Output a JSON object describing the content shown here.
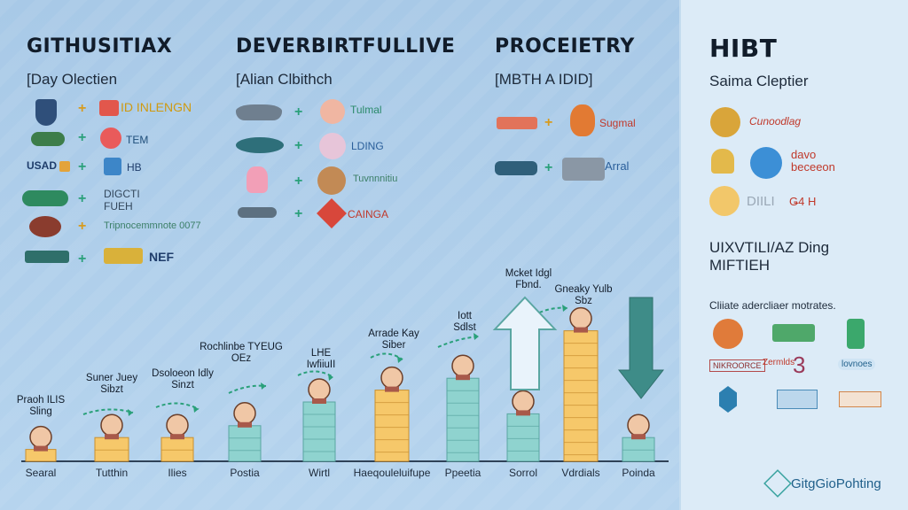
{
  "columns": [
    {
      "title": "GITHUSITIAX",
      "subtitle": "[Day Olectien",
      "rows": [
        "ID INLENGN",
        "TEM",
        "HB",
        "DIGCTI FUEH",
        "Tripnocemmnote 0077",
        "NEF"
      ],
      "left_labels": {
        "usad": "USAD"
      }
    },
    {
      "title": "DEVERBIRTFULLIVE",
      "subtitle": "[Alian Clbithch",
      "rows": [
        "Tulmal",
        "LDING",
        "Tuvnnnitiu",
        "CAINGA"
      ]
    },
    {
      "title": "PROCEIETRY",
      "subtitle": "[MBTH A IDID]",
      "rows": [
        "Sugmal",
        "Arral"
      ]
    }
  ],
  "right_panel": {
    "title": "HIBT",
    "subtitle": "Saima Cleptier",
    "logos_row1": "Cunoodlag",
    "logos_row2": "davo beceeon",
    "logos_row3_left": "DIILI",
    "logos_row3_right": "Ǥ4 H",
    "heading2": "UIXVTILI/AZ Ding MIFTIEH",
    "caption": "Cliiate adercliaer motrates.",
    "sponsors": [
      "NIKROORCE",
      "Zermlds",
      "3",
      "lovnoes"
    ],
    "footer_brand": "GitgGioPohting"
  },
  "chart_data": {
    "type": "bar",
    "categories": [
      "Searal",
      "Tutthin",
      "Ilies",
      "Postia",
      "Wirtl",
      "Haeqouleluifupe",
      "Ppeetia",
      "Sorrol",
      "Vdrdials",
      "Poinda"
    ],
    "values": [
      1,
      2,
      2,
      3,
      5,
      6,
      7,
      4,
      11,
      2
    ],
    "styles": [
      "gold",
      "gold",
      "gold",
      "teal",
      "teal",
      "gold",
      "teal",
      "teal",
      "gold",
      "teal"
    ],
    "annotations": [
      {
        "text": "Praoh ILIS Sling"
      },
      {
        "text": "Suner Juey Sibzt"
      },
      {
        "text": "Dsoloeon Idly Sinzt"
      },
      {
        "text": "Rochlinbe TYEUG OEz"
      },
      {
        "text": "LHE IwfiiuII"
      },
      {
        "text": "Arrade Kay Siber"
      },
      {
        "text": "Iott Sdlst"
      },
      {
        "text": "Mcket Idgl Fbnd."
      },
      {
        "text": "Gneaky Yulb Sbz"
      }
    ],
    "title": "",
    "xlabel": "",
    "ylabel": ""
  }
}
